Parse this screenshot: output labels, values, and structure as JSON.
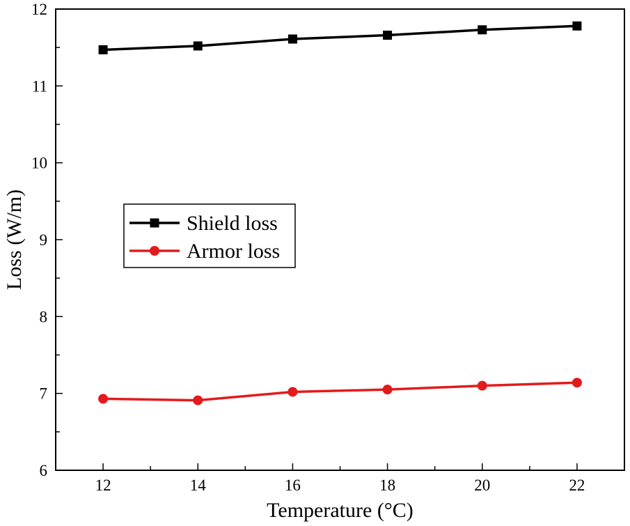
{
  "chart_data": {
    "type": "line",
    "title": "",
    "xlabel": "Temperature (°C)",
    "ylabel": "Loss (W/m)",
    "xlim": [
      11,
      23
    ],
    "ylim": [
      6,
      12
    ],
    "x_ticks": [
      12,
      14,
      16,
      18,
      20,
      22
    ],
    "y_ticks": [
      6,
      7,
      8,
      9,
      10,
      11,
      12
    ],
    "x": [
      12,
      14,
      16,
      18,
      20,
      22
    ],
    "series": [
      {
        "name": "Shield loss",
        "color": "#000000",
        "marker": "square",
        "values": [
          11.47,
          11.52,
          11.61,
          11.66,
          11.73,
          11.78
        ]
      },
      {
        "name": "Armor loss",
        "color": "#e31a1c",
        "marker": "circle",
        "values": [
          6.93,
          6.91,
          7.02,
          7.05,
          7.1,
          7.14
        ]
      }
    ],
    "legend_position": "center-left",
    "grid": false
  }
}
